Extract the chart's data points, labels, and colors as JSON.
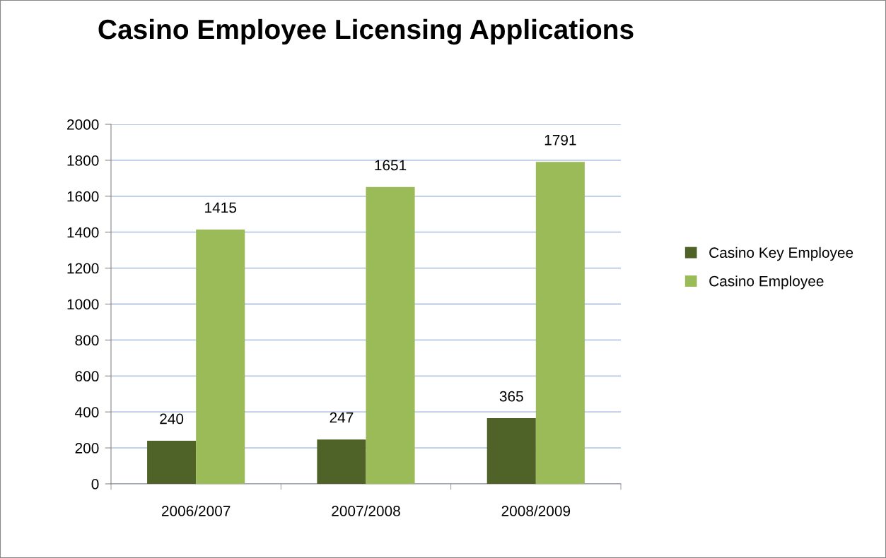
{
  "chart_data": {
    "type": "bar",
    "title": "Casino Employee Licensing Applications",
    "categories": [
      "2006/2007",
      "2007/2008",
      "2008/2009"
    ],
    "series": [
      {
        "name": "Casino Key Employee",
        "color": "#4f6228",
        "values": [
          240,
          247,
          365
        ]
      },
      {
        "name": "Casino Employee",
        "color": "#9bbb59",
        "values": [
          1415,
          1651,
          1791
        ]
      }
    ],
    "ylim": [
      0,
      2000
    ],
    "yticks": [
      0,
      200,
      400,
      600,
      800,
      1000,
      1200,
      1400,
      1600,
      1800,
      2000
    ],
    "grid": "y",
    "legend": "right",
    "data_labels": true
  }
}
